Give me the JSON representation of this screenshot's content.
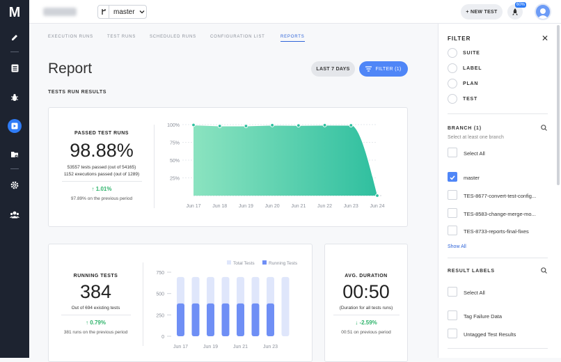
{
  "app": {
    "logo": "M",
    "project_name": "Your Project v4"
  },
  "header": {
    "branch": "master",
    "new_test": "+ NEW TEST",
    "notif_badge": "60%"
  },
  "tabs": [
    "EXECUTION RUNS",
    "TEST RUNS",
    "SCHEDULED RUNS",
    "CONFIGURATION LIST",
    "REPORTS"
  ],
  "page": {
    "title": "Report",
    "period_button": "LAST 7 DAYS",
    "filter_button": "FILTER (1)",
    "section": "TESTS RUN RESULTS"
  },
  "passed": {
    "label": "PASSED TEST RUNS",
    "value": "98.88%",
    "line1": "53557 tests passed (out of 54165)",
    "line2": "1152 executions passed (out of 1289)",
    "delta": "1.01%",
    "prev": "97.89% on the previous period"
  },
  "running": {
    "label": "RUNNING TESTS",
    "value": "384",
    "line1": "Out of 694 existing tests",
    "delta": "0.79%",
    "prev": "381 runs on the previous period"
  },
  "duration": {
    "label": "AVG. DURATION",
    "value": "00:50",
    "line1": "(Duration for all tests runs)",
    "delta": "-2.59%",
    "prev": "00:51 on previous period"
  },
  "chart_data": [
    {
      "type": "area",
      "x": [
        "Jun 17",
        "Jun 18",
        "Jun 19",
        "Jun 20",
        "Jun 21",
        "Jun 22",
        "Jun 23",
        "Jun 24"
      ],
      "values": [
        99.5,
        98.0,
        98.0,
        99.2,
        98.8,
        99.2,
        99.0,
        0
      ],
      "ylim": [
        0,
        100
      ],
      "yticks": [
        "100%",
        "75%",
        "50%",
        "25%"
      ],
      "colors": [
        "#8be3c0",
        "#2fbf9f"
      ]
    },
    {
      "type": "bar",
      "categories": [
        "Jun 17",
        "",
        "Jun 19",
        "",
        "Jun 21",
        "",
        "Jun 23",
        ""
      ],
      "series": [
        {
          "name": "Total Tests",
          "values": [
            694,
            694,
            694,
            694,
            694,
            694,
            694,
            694
          ]
        },
        {
          "name": "Running Tests",
          "values": [
            384,
            384,
            384,
            384,
            384,
            384,
            384,
            0
          ]
        }
      ],
      "ylim": [
        0,
        750
      ],
      "yticks": [
        "750",
        "500",
        "250",
        "0"
      ],
      "colors": [
        "#dfe6fb",
        "#6f8ff5"
      ]
    }
  ],
  "filter": {
    "title": "FILTER",
    "radios": [
      "SUITE",
      "LABEL",
      "PLAN",
      "TEST"
    ],
    "branch_head": "BRANCH (1)",
    "branch_hint": "Select at least one branch",
    "branches": [
      "Select All",
      "master",
      "TES-8677-convert-test-config...",
      "TES-8583-change-merge-mo...",
      "TES-8733-reports-final-fixes"
    ],
    "show_all": "Show All",
    "labels_head": "RESULT LABELS",
    "labels": [
      "Select All",
      "Tag Failure Data",
      "Untagged Test Results"
    ]
  }
}
